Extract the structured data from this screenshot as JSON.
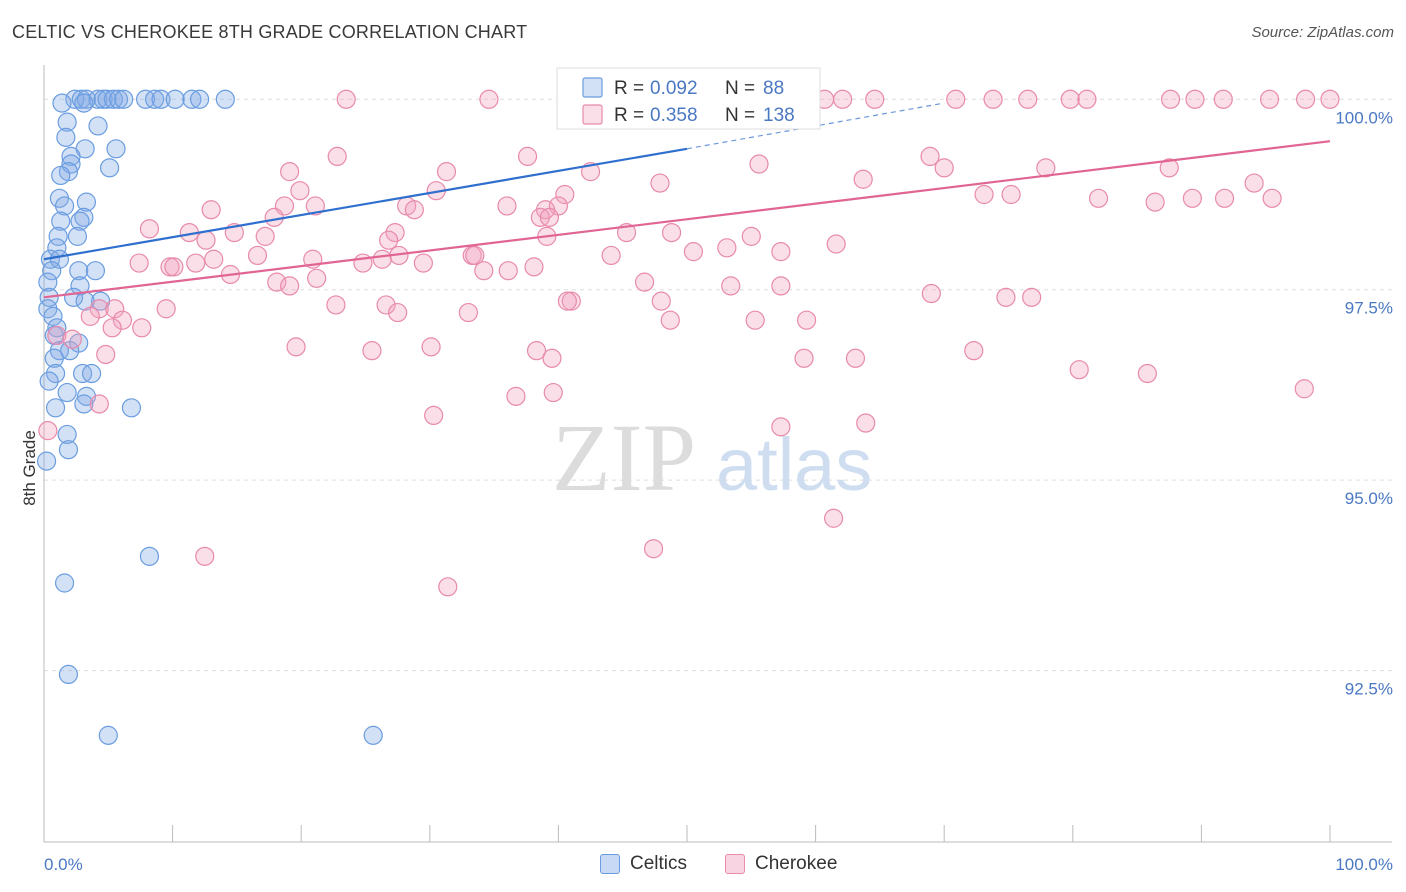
{
  "title": "CELTIC VS CHEROKEE 8TH GRADE CORRELATION CHART",
  "source": "Source: ZipAtlas.com",
  "watermark": {
    "part1": "ZIP",
    "part2": "atlas"
  },
  "chart_data": {
    "type": "scatter",
    "xlabel": "",
    "ylabel": "8th Grade",
    "xlim": [
      0,
      100
    ],
    "ylim": [
      90.25,
      100.45
    ],
    "x_tick_labels": [
      {
        "value": 0,
        "label": "0.0%"
      },
      {
        "value": 100,
        "label": "100.0%"
      }
    ],
    "y_ticks": [
      {
        "value": 100.0,
        "label": "100.0%"
      },
      {
        "value": 97.5,
        "label": "97.5%"
      },
      {
        "value": 95.0,
        "label": "95.0%"
      },
      {
        "value": 92.5,
        "label": "92.5%"
      }
    ],
    "grid": "horizontal-dashed",
    "legend_top": [
      {
        "r_label": "R =",
        "r_value": "0.092",
        "n_label": "N =",
        "n_value": "88",
        "color": "#5b8fd6"
      },
      {
        "r_label": "R =",
        "r_value": "0.358",
        "n_label": "N =",
        "n_value": "138",
        "color": "#e8739b"
      }
    ],
    "series": [
      {
        "name": "Celtics",
        "color": "#6a9de0",
        "fill": "rgba(130,170,230,0.35)",
        "line_color": "#2f6fce",
        "trend": {
          "x0": 0,
          "y0": 97.9,
          "x1": 50,
          "y1": 99.35,
          "x_dash_end": 70,
          "y_dash_end": 99.95
        },
        "points": [
          [
            2.4,
            100
          ],
          [
            2.9,
            100
          ],
          [
            3.3,
            100
          ],
          [
            4.2,
            100
          ],
          [
            4.6,
            100
          ],
          [
            4.9,
            100
          ],
          [
            5.4,
            100
          ],
          [
            5.8,
            100
          ],
          [
            6.2,
            100
          ],
          [
            7.9,
            100
          ],
          [
            8.6,
            100
          ],
          [
            9.1,
            100
          ],
          [
            10.2,
            100
          ],
          [
            11.5,
            100
          ],
          [
            12.1,
            100
          ],
          [
            14.1,
            100
          ],
          [
            1.4,
            99.95
          ],
          [
            3.1,
            99.95
          ],
          [
            1.8,
            99.7
          ],
          [
            4.2,
            99.65
          ],
          [
            1.7,
            99.5
          ],
          [
            3.2,
            99.35
          ],
          [
            5.6,
            99.35
          ],
          [
            2.1,
            99.25
          ],
          [
            2.1,
            99.15
          ],
          [
            1.9,
            99.05
          ],
          [
            5.1,
            99.1
          ],
          [
            1.3,
            99.0
          ],
          [
            1.2,
            98.7
          ],
          [
            3.3,
            98.65
          ],
          [
            1.6,
            98.6
          ],
          [
            3.1,
            98.45
          ],
          [
            1.3,
            98.4
          ],
          [
            2.8,
            98.4
          ],
          [
            1.1,
            98.2
          ],
          [
            2.6,
            98.2
          ],
          [
            1.0,
            98.05
          ],
          [
            0.5,
            97.9
          ],
          [
            1.2,
            97.9
          ],
          [
            0.6,
            97.75
          ],
          [
            2.7,
            97.75
          ],
          [
            4.0,
            97.75
          ],
          [
            0.3,
            97.6
          ],
          [
            2.8,
            97.55
          ],
          [
            0.4,
            97.4
          ],
          [
            2.3,
            97.4
          ],
          [
            4.4,
            97.35
          ],
          [
            3.2,
            97.35
          ],
          [
            0.3,
            97.25
          ],
          [
            0.7,
            97.15
          ],
          [
            1.0,
            97.0
          ],
          [
            0.8,
            96.9
          ],
          [
            2.7,
            96.8
          ],
          [
            1.2,
            96.7
          ],
          [
            2.0,
            96.7
          ],
          [
            0.8,
            96.6
          ],
          [
            0.9,
            96.4
          ],
          [
            3.0,
            96.4
          ],
          [
            3.7,
            96.4
          ],
          [
            0.4,
            96.3
          ],
          [
            1.8,
            96.15
          ],
          [
            3.3,
            96.1
          ],
          [
            3.1,
            96.0
          ],
          [
            0.9,
            95.95
          ],
          [
            6.8,
            95.95
          ],
          [
            1.8,
            95.6
          ],
          [
            1.9,
            95.4
          ],
          [
            0.2,
            95.25
          ],
          [
            8.2,
            94.0
          ],
          [
            1.6,
            93.65
          ],
          [
            1.9,
            92.45
          ],
          [
            5.0,
            91.65
          ],
          [
            25.6,
            91.65
          ]
        ]
      },
      {
        "name": "Cherokee",
        "color": "#e88aab",
        "fill": "rgba(240,160,190,0.35)",
        "line_color": "#e06593",
        "trend": {
          "x0": 0,
          "y0": 97.4,
          "x1": 100,
          "y1": 99.45
        },
        "points": [
          [
            23.5,
            100
          ],
          [
            34.6,
            100
          ],
          [
            44.2,
            100
          ],
          [
            46.3,
            100
          ],
          [
            49.4,
            100
          ],
          [
            52.8,
            100
          ],
          [
            60.7,
            100
          ],
          [
            62.1,
            100
          ],
          [
            64.6,
            100
          ],
          [
            70.9,
            100
          ],
          [
            73.8,
            100
          ],
          [
            76.5,
            100
          ],
          [
            79.8,
            100
          ],
          [
            81.1,
            100
          ],
          [
            87.6,
            100
          ],
          [
            89.5,
            100
          ],
          [
            91.7,
            100
          ],
          [
            95.3,
            100
          ],
          [
            98.1,
            100
          ],
          [
            100.0,
            100
          ],
          [
            22.8,
            99.25
          ],
          [
            37.6,
            99.25
          ],
          [
            68.9,
            99.25
          ],
          [
            55.6,
            99.15
          ],
          [
            70.0,
            99.1
          ],
          [
            77.9,
            99.1
          ],
          [
            87.5,
            99.1
          ],
          [
            19.1,
            99.05
          ],
          [
            31.3,
            99.05
          ],
          [
            42.5,
            99.05
          ],
          [
            63.7,
            98.95
          ],
          [
            47.9,
            98.9
          ],
          [
            94.1,
            98.9
          ],
          [
            19.9,
            98.8
          ],
          [
            30.5,
            98.8
          ],
          [
            40.5,
            98.75
          ],
          [
            73.1,
            98.75
          ],
          [
            75.2,
            98.75
          ],
          [
            82.0,
            98.7
          ],
          [
            89.3,
            98.7
          ],
          [
            91.8,
            98.7
          ],
          [
            95.5,
            98.7
          ],
          [
            86.4,
            98.65
          ],
          [
            18.7,
            98.6
          ],
          [
            21.1,
            98.6
          ],
          [
            28.2,
            98.6
          ],
          [
            36.0,
            98.6
          ],
          [
            40.0,
            98.6
          ],
          [
            39.0,
            98.55
          ],
          [
            28.8,
            98.55
          ],
          [
            13.0,
            98.55
          ],
          [
            17.9,
            98.45
          ],
          [
            38.6,
            98.45
          ],
          [
            39.3,
            98.45
          ],
          [
            8.2,
            98.3
          ],
          [
            17.2,
            98.2
          ],
          [
            27.3,
            98.25
          ],
          [
            45.3,
            98.25
          ],
          [
            48.8,
            98.25
          ],
          [
            55.0,
            98.2
          ],
          [
            14.8,
            98.25
          ],
          [
            11.3,
            98.25
          ],
          [
            12.6,
            98.15
          ],
          [
            26.8,
            98.15
          ],
          [
            39.1,
            98.2
          ],
          [
            53.1,
            98.05
          ],
          [
            44.1,
            97.95
          ],
          [
            50.5,
            98.0
          ],
          [
            61.6,
            98.1
          ],
          [
            57.3,
            98.0
          ],
          [
            16.6,
            97.95
          ],
          [
            20.9,
            97.9
          ],
          [
            27.6,
            97.95
          ],
          [
            33.3,
            97.95
          ],
          [
            33.5,
            97.95
          ],
          [
            26.3,
            97.9
          ],
          [
            13.2,
            97.9
          ],
          [
            7.4,
            97.85
          ],
          [
            9.8,
            97.8
          ],
          [
            10.1,
            97.8
          ],
          [
            11.8,
            97.85
          ],
          [
            24.8,
            97.85
          ],
          [
            29.5,
            97.85
          ],
          [
            34.2,
            97.75
          ],
          [
            36.1,
            97.75
          ],
          [
            38.1,
            97.8
          ],
          [
            14.5,
            97.7
          ],
          [
            18.1,
            97.6
          ],
          [
            19.1,
            97.55
          ],
          [
            21.2,
            97.65
          ],
          [
            46.7,
            97.6
          ],
          [
            53.4,
            97.55
          ],
          [
            57.3,
            97.55
          ],
          [
            69.0,
            97.45
          ],
          [
            74.8,
            97.4
          ],
          [
            76.8,
            97.4
          ],
          [
            41.0,
            97.35
          ],
          [
            48.0,
            97.35
          ],
          [
            22.7,
            97.3
          ],
          [
            4.3,
            97.25
          ],
          [
            5.5,
            97.25
          ],
          [
            9.5,
            97.25
          ],
          [
            26.6,
            97.3
          ],
          [
            40.7,
            97.35
          ],
          [
            3.6,
            97.15
          ],
          [
            6.1,
            97.1
          ],
          [
            7.6,
            97.0
          ],
          [
            5.3,
            97.0
          ],
          [
            27.5,
            97.2
          ],
          [
            33.0,
            97.2
          ],
          [
            48.7,
            97.1
          ],
          [
            55.3,
            97.1
          ],
          [
            59.3,
            97.1
          ],
          [
            1.0,
            96.9
          ],
          [
            2.2,
            96.85
          ],
          [
            4.8,
            96.65
          ],
          [
            19.6,
            96.75
          ],
          [
            25.5,
            96.7
          ],
          [
            30.1,
            96.75
          ],
          [
            38.3,
            96.7
          ],
          [
            39.5,
            96.6
          ],
          [
            59.1,
            96.6
          ],
          [
            63.1,
            96.6
          ],
          [
            72.3,
            96.7
          ],
          [
            80.5,
            96.45
          ],
          [
            85.8,
            96.4
          ],
          [
            98.0,
            96.2
          ],
          [
            30.3,
            95.85
          ],
          [
            36.7,
            96.1
          ],
          [
            39.6,
            96.15
          ],
          [
            57.3,
            95.7
          ],
          [
            63.9,
            95.75
          ],
          [
            61.4,
            94.5
          ],
          [
            47.4,
            94.1
          ],
          [
            12.5,
            94.0
          ],
          [
            31.4,
            93.6
          ],
          [
            4.3,
            96.0
          ],
          [
            0.3,
            95.65
          ]
        ]
      }
    ]
  }
}
